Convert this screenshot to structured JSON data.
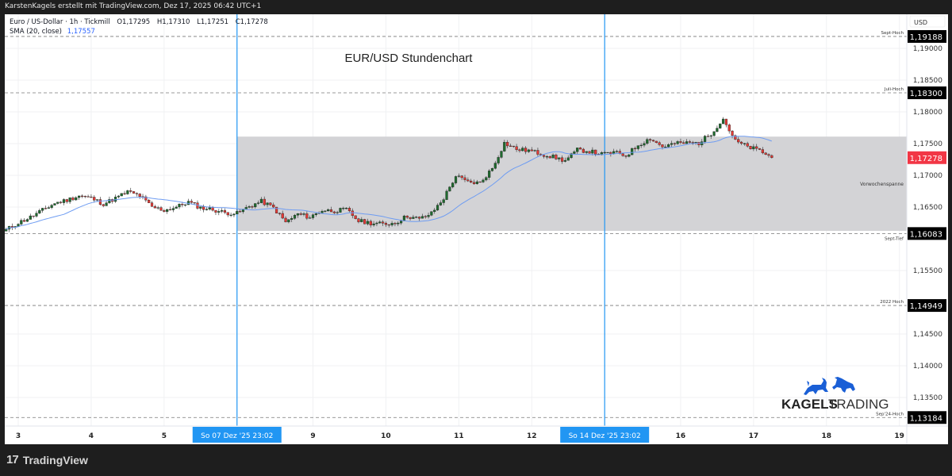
{
  "header": {
    "attribution": "KarstenKagels erstellt mit TradingView.com, Dez 17, 2025 06:42 UTC+1"
  },
  "legend": {
    "symbol": "Euro / US-Dollar · 1h · Tickmill",
    "open": "O1,17295",
    "high": "H1,17310",
    "low": "L1,17251",
    "close": "C1,17278",
    "sma_label": "SMA (20, close)",
    "sma_value": "1,17557"
  },
  "chart_title": "EUR/USD Stundenchart",
  "price_axis": {
    "currency": "USD",
    "ticks": [
      {
        "price": 1.19,
        "label": "1,19000"
      },
      {
        "price": 1.185,
        "label": "1,18500"
      },
      {
        "price": 1.18,
        "label": "1,18000"
      },
      {
        "price": 1.175,
        "label": "1,17500"
      },
      {
        "price": 1.17,
        "label": "1,17000"
      },
      {
        "price": 1.165,
        "label": "1,16500"
      },
      {
        "price": 1.155,
        "label": "1,15500"
      },
      {
        "price": 1.145,
        "label": "1,14500"
      },
      {
        "price": 1.14,
        "label": "1,14000"
      },
      {
        "price": 1.135,
        "label": "1,13500"
      }
    ],
    "current_price": {
      "price": 1.17278,
      "label": "1,17278",
      "color": "#f23645"
    }
  },
  "levels": [
    {
      "name": "Sept-Hoch",
      "price": 1.19188,
      "label": "1,19188"
    },
    {
      "name": "Juli-Hoch",
      "price": 1.183,
      "label": "1,18300"
    },
    {
      "name": "Sept-Tief",
      "price": 1.16083,
      "label": "1,16083"
    },
    {
      "name": "2022 Hoch",
      "price": 1.14949,
      "label": "1,14949"
    },
    {
      "name": "Sep'24-Hoch",
      "price": 1.13184,
      "label": "1,13184"
    }
  ],
  "range_box": {
    "label": "Vorwochenspanne",
    "high": 1.1761,
    "low": 1.16125,
    "color": "#d1d1d4"
  },
  "time_axis": {
    "labels": [
      "3",
      "4",
      "5",
      "9",
      "10",
      "11",
      "12",
      "16",
      "17",
      "18",
      "19"
    ],
    "crosshairs": [
      {
        "label": "So 07 Dez '25   23:02"
      },
      {
        "label": "So 14 Dez '25   23:02"
      }
    ],
    "crosshair_color": "#2196f3"
  },
  "chart_data": {
    "type": "candlestick",
    "interval": "1h",
    "series": [
      {
        "name": "Euro / US-Dollar",
        "close_4h": [
          1.1614,
          1.1625,
          1.1634,
          1.1645,
          1.1656,
          1.1661,
          1.1668,
          1.1664,
          1.1655,
          1.1664,
          1.1674,
          1.1668,
          1.165,
          1.1645,
          1.165,
          1.1658,
          1.1649,
          1.1646,
          1.1641,
          1.164,
          1.1651,
          1.1659,
          1.1649,
          1.1626,
          1.1639,
          1.1634,
          1.1645,
          1.1644,
          1.1646,
          1.1628,
          1.1625,
          1.1623,
          1.1625,
          1.1636,
          1.1631,
          1.164,
          1.1664,
          1.1699,
          1.1689,
          1.1688,
          1.1711,
          1.1751,
          1.1741,
          1.1739,
          1.1734,
          1.1729,
          1.1723,
          1.174,
          1.1738,
          1.1733,
          1.1736,
          1.1731,
          1.1748,
          1.1758,
          1.1745,
          1.175,
          1.1751,
          1.1751,
          1.1766,
          1.1789,
          1.1754,
          1.1745,
          1.1739,
          1.17278
        ]
      },
      {
        "name": "SMA (20, close)",
        "color": "#6e9cf2"
      }
    ],
    "colors": {
      "up": "#1e6b2e",
      "down": "#e53935"
    },
    "ylim": [
      1.1285,
      1.1935
    ]
  },
  "logo": {
    "text_bold": "KAGELS",
    "text_light": "TRADING",
    "color": "#1a5fd6"
  },
  "footer": {
    "brand": "TradingView"
  }
}
